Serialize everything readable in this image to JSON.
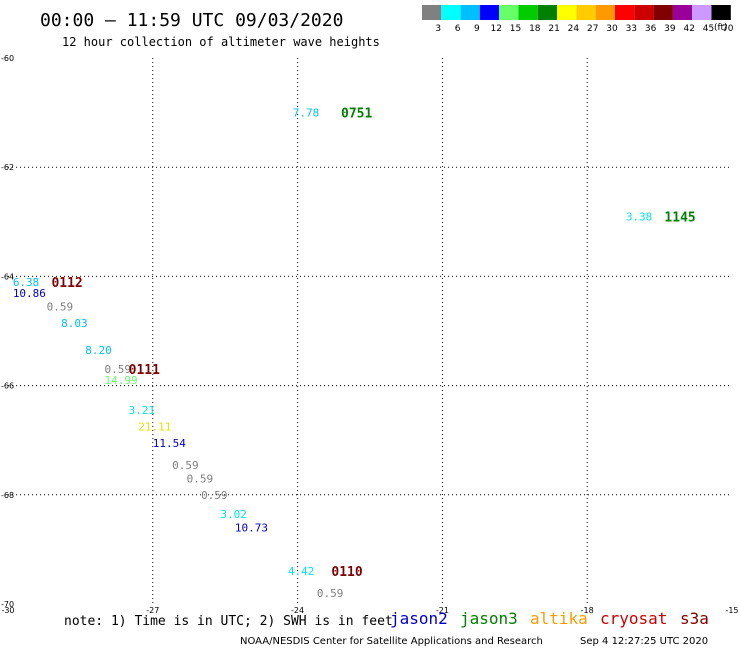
{
  "header": {
    "title": "00:00 – 11:59 UTC 09/03/2020",
    "subtitle": "12 hour collection of altimeter wave heights"
  },
  "colorbar": {
    "unit": "(ft)",
    "bins": [
      {
        "label": "3",
        "color": "#808080"
      },
      {
        "label": "6",
        "color": "#00ffff"
      },
      {
        "label": "9",
        "color": "#00bfff"
      },
      {
        "label": "12",
        "color": "#0000ff"
      },
      {
        "label": "15",
        "color": "#66ff66"
      },
      {
        "label": "18",
        "color": "#00cc00"
      },
      {
        "label": "21",
        "color": "#008000"
      },
      {
        "label": "24",
        "color": "#ffff00"
      },
      {
        "label": "27",
        "color": "#ffcc00"
      },
      {
        "label": "30",
        "color": "#ff9900"
      },
      {
        "label": "33",
        "color": "#ff0000"
      },
      {
        "label": "36",
        "color": "#cc0000"
      },
      {
        "label": "39",
        "color": "#800000"
      },
      {
        "label": "42",
        "color": "#990099"
      },
      {
        "label": "45",
        "color": "#cc99ff"
      },
      {
        "label": "70",
        "color": "#000000"
      }
    ]
  },
  "chart_data": {
    "type": "scatter",
    "title": "00:00 – 11:59 UTC 09/03/2020",
    "subtitle": "12 hour collection of altimeter wave heights",
    "xlim": [
      -30,
      -15
    ],
    "ylim": [
      -70,
      -60
    ],
    "grid": true,
    "x_ticks": [
      {
        "value": -30,
        "label": "-30"
      },
      {
        "value": -27,
        "label": "-27"
      },
      {
        "value": -24,
        "label": "-24"
      },
      {
        "value": -21,
        "label": "-21"
      },
      {
        "value": -18,
        "label": "-18"
      },
      {
        "value": -15,
        "label": "-15"
      }
    ],
    "y_ticks": [
      {
        "value": -60,
        "label": "-60"
      },
      {
        "value": -62,
        "label": "-62"
      },
      {
        "value": -64,
        "label": "-64"
      },
      {
        "value": -66,
        "label": "-66"
      },
      {
        "value": -68,
        "label": "-68"
      },
      {
        "value": -70,
        "label": "-70"
      }
    ],
    "observations": [
      {
        "lon": -24.1,
        "lat": -61.0,
        "value": "7.78",
        "color": "#00bfff"
      },
      {
        "lon": -17.2,
        "lat": -62.9,
        "value": "3.38",
        "color": "#00e5e5"
      },
      {
        "lon": -29.9,
        "lat": -64.1,
        "value": "6.38",
        "color": "#00bfff"
      },
      {
        "lon": -29.9,
        "lat": -64.3,
        "value": "10.86",
        "color": "#0000cc"
      },
      {
        "lon": -29.2,
        "lat": -64.55,
        "value": "0.59",
        "color": "#808080"
      },
      {
        "lon": -28.9,
        "lat": -64.85,
        "value": "8.03",
        "color": "#00bfff"
      },
      {
        "lon": -28.4,
        "lat": -65.35,
        "value": "8.20",
        "color": "#00bfff"
      },
      {
        "lon": -28.0,
        "lat": -65.7,
        "value": "0.59",
        "color": "#808080"
      },
      {
        "lon": -28.0,
        "lat": -65.9,
        "value": "14.99",
        "color": "#66ff66"
      },
      {
        "lon": -27.5,
        "lat": -66.45,
        "value": "3.21",
        "color": "#00e5e5"
      },
      {
        "lon": -27.3,
        "lat": -66.75,
        "value": "21.11",
        "color": "#e5e500"
      },
      {
        "lon": -27.0,
        "lat": -67.05,
        "value": "11.54",
        "color": "#0000cc"
      },
      {
        "lon": -26.6,
        "lat": -67.45,
        "value": "0.59",
        "color": "#808080"
      },
      {
        "lon": -26.3,
        "lat": -67.7,
        "value": "0.59",
        "color": "#808080"
      },
      {
        "lon": -26.0,
        "lat": -68.0,
        "value": "0.59",
        "color": "#808080"
      },
      {
        "lon": -25.6,
        "lat": -68.35,
        "value": "3.02",
        "color": "#00e5e5"
      },
      {
        "lon": -25.3,
        "lat": -68.6,
        "value": "10.73",
        "color": "#0000cc"
      },
      {
        "lon": -24.2,
        "lat": -69.4,
        "value": "4.42",
        "color": "#00e5e5"
      },
      {
        "lon": -23.6,
        "lat": -69.8,
        "value": "0.59",
        "color": "#808080"
      }
    ],
    "time_labels": [
      {
        "lon": -23.1,
        "lat": -61.0,
        "text": "0751",
        "color": "#008000"
      },
      {
        "lon": -16.4,
        "lat": -62.9,
        "text": "1145",
        "color": "#008000"
      },
      {
        "lon": -29.1,
        "lat": -64.1,
        "text": "0112",
        "color": "#800000"
      },
      {
        "lon": -27.5,
        "lat": -65.7,
        "text": "0111",
        "color": "#800000"
      },
      {
        "lon": -23.3,
        "lat": -69.4,
        "text": "0110",
        "color": "#800000"
      }
    ]
  },
  "footer": {
    "note": "note: 1) Time is in UTC; 2) SWH is in feet",
    "satellites": [
      {
        "name": "jason2",
        "color": "#0000cc"
      },
      {
        "name": "jason3",
        "color": "#008000"
      },
      {
        "name": "altika",
        "color": "#ff9900"
      },
      {
        "name": "cryosat",
        "color": "#cc0000"
      },
      {
        "name": "s3a",
        "color": "#800000"
      }
    ],
    "credit": "NOAA/NESDIS Center for Satellite Applications and Research",
    "timestamp": "Sep  4 12:27:25 UTC 2020"
  }
}
